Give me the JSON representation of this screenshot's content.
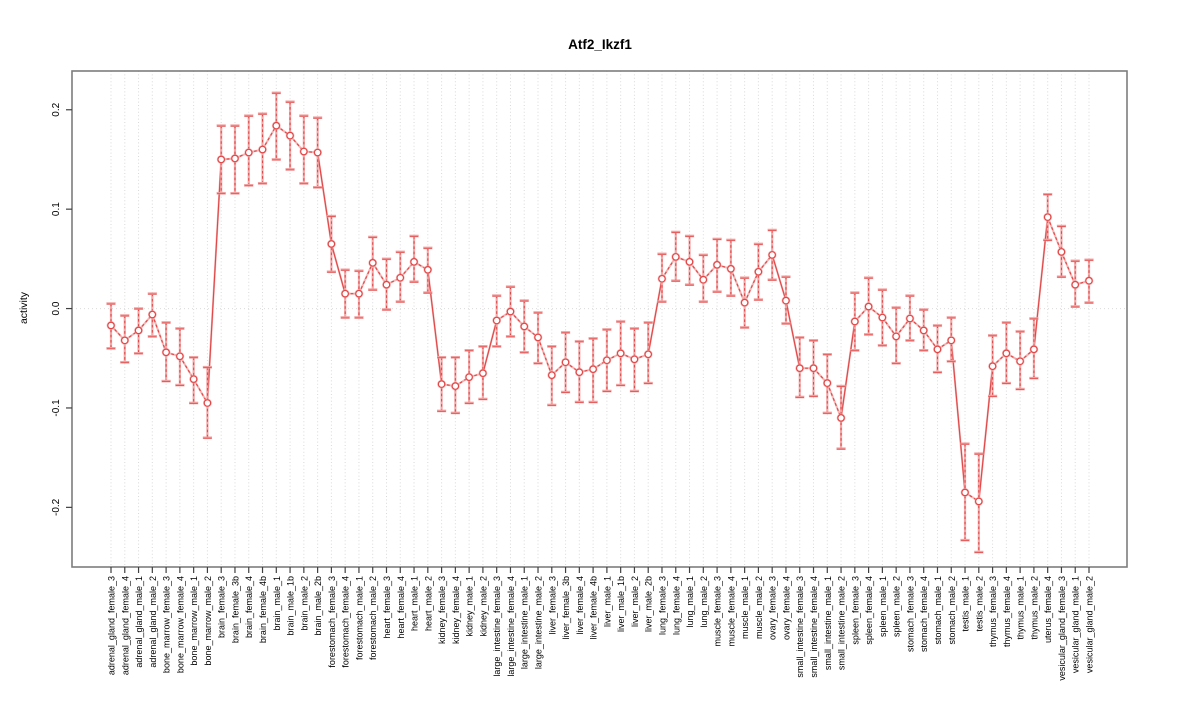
{
  "title": "Atf2_Ikzf1",
  "chart_data": {
    "type": "line",
    "title": "Atf2_Ikzf1",
    "xlabel": "",
    "ylabel": "activity",
    "ylim": [
      -0.26,
      0.239
    ],
    "yticks": [
      0.2,
      0.1,
      0.0,
      -0.1,
      -0.2
    ],
    "ytick_labels": [
      "0.2",
      "0.1",
      "0.0",
      "-0.1",
      "-0.2"
    ],
    "grid": "vertical dotted gridline at every category; dotted horizontal line at y=0",
    "legend_position": "none",
    "marker": "open-circle",
    "style": "points with confidence-interval error bars; dashed connectors between neighboring points, solid connectors on large jumps; light red underlay series",
    "colors": {
      "series": "#e04848",
      "series_light": "#f3a0a0",
      "grid": "#d9d9d9",
      "zero_line": "#dcdcdc",
      "frame": "#7d7d7d",
      "tick": "#404040",
      "text": "#000000"
    },
    "categories": [
      "adrenal_gland_female_3",
      "adrenal_gland_female_4",
      "adrenal_gland_male_1",
      "adrenal_gland_male_2",
      "bone_marrow_female_3",
      "bone_marrow_female_4",
      "bone_marrow_male_1",
      "bone_marrow_male_2",
      "brain_female_3",
      "brain_female_3b",
      "brain_female_4",
      "brain_female_4b",
      "brain_male_1",
      "brain_male_1b",
      "brain_male_2",
      "brain_male_2b",
      "forestomach_female_3",
      "forestomach_female_4",
      "forestomach_male_1",
      "forestomach_male_2",
      "heart_female_3",
      "heart_female_4",
      "heart_male_1",
      "heart_male_2",
      "kidney_female_3",
      "kidney_female_4",
      "kidney_male_1",
      "kidney_male_2",
      "large_intestine_female_3",
      "large_intestine_female_4",
      "large_intestine_male_1",
      "large_intestine_male_2",
      "liver_female_3",
      "liver_female_3b",
      "liver_female_4",
      "liver_female_4b",
      "liver_male_1",
      "liver_male_1b",
      "liver_male_2",
      "liver_male_2b",
      "lung_female_3",
      "lung_female_4",
      "lung_male_1",
      "lung_male_2",
      "muscle_female_3",
      "muscle_female_4",
      "muscle_male_1",
      "muscle_male_2",
      "ovary_female_3",
      "ovary_female_4",
      "small_intestine_female_3",
      "small_intestine_female_4",
      "small_intestine_male_1",
      "small_intestine_male_2",
      "spleen_female_3",
      "spleen_female_4",
      "spleen_male_1",
      "spleen_male_2",
      "stomach_female_3",
      "stomach_female_4",
      "stomach_male_1",
      "stomach_male_2",
      "testis_male_1",
      "testis_male_2",
      "thymus_female_3",
      "thymus_female_4",
      "thymus_male_1",
      "thymus_male_2",
      "uterus_female_4",
      "vesicular_gland_female_3",
      "vesicular_gland_male_1",
      "vesicular_gland_male_2"
    ],
    "values": [
      -0.017,
      -0.032,
      -0.022,
      -0.006,
      -0.044,
      -0.048,
      -0.071,
      -0.095,
      0.15,
      0.151,
      0.157,
      0.16,
      0.184,
      0.174,
      0.158,
      0.157,
      0.065,
      0.015,
      0.015,
      0.046,
      0.024,
      0.031,
      0.047,
      0.039,
      -0.076,
      -0.078,
      -0.069,
      -0.065,
      -0.012,
      -0.003,
      -0.018,
      -0.029,
      -0.067,
      -0.054,
      -0.064,
      -0.061,
      -0.052,
      -0.045,
      -0.051,
      -0.046,
      0.03,
      0.052,
      0.047,
      0.029,
      0.044,
      0.04,
      0.006,
      0.037,
      0.054,
      0.008,
      -0.06,
      -0.06,
      -0.075,
      -0.11,
      -0.013,
      0.002,
      -0.009,
      -0.028,
      -0.01,
      -0.022,
      -0.041,
      -0.032,
      -0.185,
      -0.194,
      -0.058,
      -0.045,
      -0.053,
      -0.041,
      0.092,
      0.057,
      0.024,
      0.028
    ],
    "ci_low": [
      -0.04,
      -0.054,
      -0.045,
      -0.028,
      -0.073,
      -0.077,
      -0.095,
      -0.13,
      0.116,
      0.116,
      0.124,
      0.126,
      0.15,
      0.14,
      0.126,
      0.122,
      0.037,
      -0.009,
      -0.009,
      0.019,
      -0.001,
      0.007,
      0.027,
      0.016,
      -0.103,
      -0.105,
      -0.095,
      -0.091,
      -0.038,
      -0.028,
      -0.044,
      -0.055,
      -0.097,
      -0.084,
      -0.094,
      -0.094,
      -0.083,
      -0.077,
      -0.083,
      -0.075,
      0.007,
      0.028,
      0.024,
      0.007,
      0.017,
      0.013,
      -0.019,
      0.009,
      0.029,
      -0.015,
      -0.089,
      -0.088,
      -0.105,
      -0.141,
      -0.042,
      -0.026,
      -0.037,
      -0.055,
      -0.032,
      -0.042,
      -0.064,
      -0.053,
      -0.233,
      -0.245,
      -0.088,
      -0.075,
      -0.081,
      -0.07,
      0.069,
      0.032,
      0.002,
      0.006
    ],
    "ci_high": [
      0.005,
      -0.007,
      0.0,
      0.015,
      -0.014,
      -0.02,
      -0.049,
      -0.059,
      0.184,
      0.184,
      0.194,
      0.196,
      0.217,
      0.208,
      0.194,
      0.192,
      0.093,
      0.039,
      0.038,
      0.072,
      0.05,
      0.057,
      0.073,
      0.061,
      -0.049,
      -0.049,
      -0.042,
      -0.038,
      0.013,
      0.022,
      0.008,
      -0.004,
      -0.038,
      -0.024,
      -0.033,
      -0.03,
      -0.021,
      -0.013,
      -0.02,
      -0.014,
      0.055,
      0.077,
      0.073,
      0.054,
      0.07,
      0.069,
      0.031,
      0.065,
      0.079,
      0.032,
      -0.029,
      -0.032,
      -0.046,
      -0.078,
      0.016,
      0.031,
      0.019,
      0.001,
      0.013,
      -0.001,
      -0.017,
      -0.009,
      -0.136,
      -0.146,
      -0.027,
      -0.014,
      -0.023,
      -0.01,
      0.115,
      0.083,
      0.048,
      0.049
    ]
  }
}
